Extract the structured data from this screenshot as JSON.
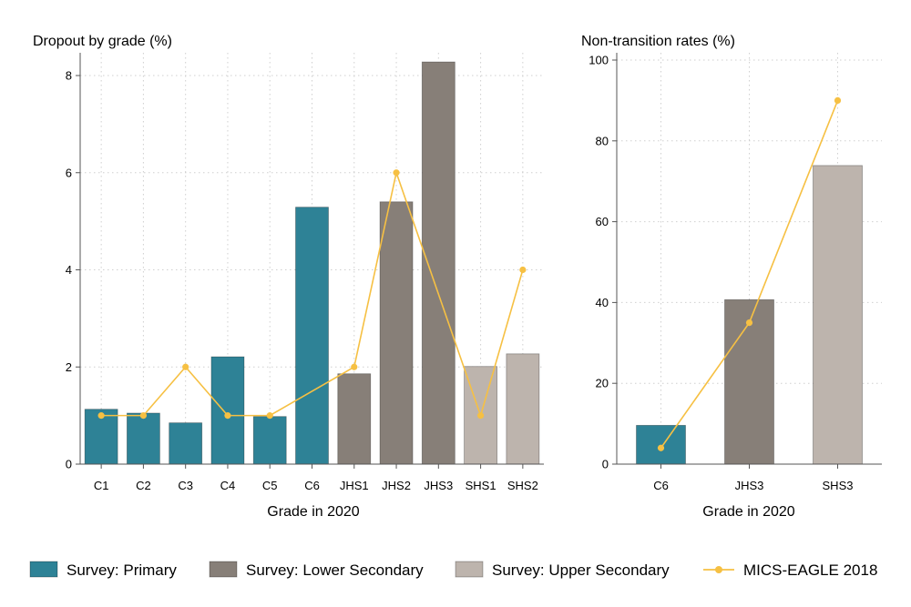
{
  "colors": {
    "primary": "#2e8296",
    "lower_secondary": "#877f78",
    "upper_secondary": "#bdb4ad",
    "mics": "#f6c043"
  },
  "chart_data": [
    {
      "type": "bar",
      "title": "Dropout by grade (%)",
      "xlabel": "Grade in 2020",
      "ylabel": "",
      "ylim": [
        0,
        8.5
      ],
      "yticks": [
        0,
        2,
        4,
        6,
        8
      ],
      "grid": true,
      "categories": [
        "C1",
        "C2",
        "C3",
        "C4",
        "C5",
        "C6",
        "JHS1",
        "JHS2",
        "JHS3",
        "SHS1",
        "SHS2"
      ],
      "series": [
        {
          "name": "Survey: Primary",
          "type": "bar",
          "color_key": "primary",
          "values": [
            1.13,
            1.05,
            0.85,
            2.21,
            0.98,
            5.29,
            null,
            null,
            null,
            null,
            null
          ]
        },
        {
          "name": "Survey: Lower Secondary",
          "type": "bar",
          "color_key": "lower_secondary",
          "values": [
            null,
            null,
            null,
            null,
            null,
            null,
            1.86,
            5.4,
            8.28,
            null,
            null
          ]
        },
        {
          "name": "Survey: Upper Secondary",
          "type": "bar",
          "color_key": "upper_secondary",
          "values": [
            null,
            null,
            null,
            null,
            null,
            null,
            null,
            null,
            null,
            2.01,
            2.27
          ]
        },
        {
          "name": "MICS-EAGLE 2018",
          "type": "line",
          "color_key": "mics",
          "values": [
            1.0,
            1.0,
            2.0,
            1.0,
            1.0,
            null,
            2.0,
            6.0,
            null,
            1.0,
            4.0
          ]
        }
      ]
    },
    {
      "type": "bar",
      "title": "Non-transition rates (%)",
      "xlabel": "Grade in 2020",
      "ylabel": "",
      "ylim": [
        0,
        102
      ],
      "yticks": [
        0,
        20,
        40,
        60,
        80,
        100
      ],
      "grid": true,
      "categories": [
        "C6",
        "JHS3",
        "SHS3"
      ],
      "series": [
        {
          "name": "Survey: Primary",
          "type": "bar",
          "color_key": "primary",
          "values": [
            9.6,
            null,
            null
          ]
        },
        {
          "name": "Survey: Lower Secondary",
          "type": "bar",
          "color_key": "lower_secondary",
          "values": [
            null,
            40.7,
            null
          ]
        },
        {
          "name": "Survey: Upper Secondary",
          "type": "bar",
          "color_key": "upper_secondary",
          "values": [
            null,
            null,
            73.9
          ]
        },
        {
          "name": "MICS-EAGLE 2018",
          "type": "line",
          "color_key": "mics",
          "values": [
            4.0,
            35.0,
            90.0
          ]
        }
      ]
    }
  ],
  "legend": {
    "position": "bottom",
    "items": [
      {
        "label": "Survey: Primary",
        "kind": "box",
        "color_key": "primary"
      },
      {
        "label": "Survey: Lower Secondary",
        "kind": "box",
        "color_key": "lower_secondary"
      },
      {
        "label": "Survey: Upper Secondary",
        "kind": "box",
        "color_key": "upper_secondary"
      },
      {
        "label": "MICS-EAGLE 2018",
        "kind": "line-marker",
        "color_key": "mics"
      }
    ]
  }
}
